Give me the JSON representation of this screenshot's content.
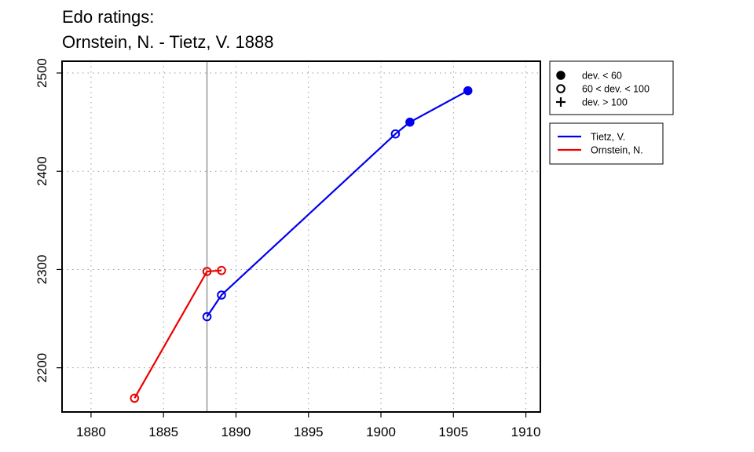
{
  "chart_data": {
    "type": "line",
    "title": [
      "Edo ratings:",
      "Ornstein, N. - Tietz, V. 1888"
    ],
    "xlim": [
      1878,
      1911
    ],
    "ylim": [
      2155,
      2512
    ],
    "x_ticks": [
      1880,
      1885,
      1890,
      1895,
      1900,
      1905,
      1910
    ],
    "y_ticks": [
      2200,
      2300,
      2400,
      2500
    ],
    "grid": true,
    "vline_x": 1888,
    "series": [
      {
        "name": "Tietz, V.",
        "color": "#0000ee",
        "points": [
          {
            "x": 1888,
            "y": 2252,
            "marker": "open"
          },
          {
            "x": 1889,
            "y": 2274,
            "marker": "open"
          },
          {
            "x": 1901,
            "y": 2438,
            "marker": "open"
          },
          {
            "x": 1902,
            "y": 2450,
            "marker": "filled"
          },
          {
            "x": 1906,
            "y": 2482,
            "marker": "filled"
          }
        ]
      },
      {
        "name": "Ornstein, N.",
        "color": "#ee0000",
        "points": [
          {
            "x": 1883,
            "y": 2169,
            "marker": "open"
          },
          {
            "x": 1888,
            "y": 2298,
            "marker": "open"
          },
          {
            "x": 1889,
            "y": 2299,
            "marker": "open"
          }
        ]
      }
    ],
    "marker_legend": [
      {
        "marker": "filled",
        "label": "dev. < 60"
      },
      {
        "marker": "open",
        "label": "60 < dev. < 100"
      },
      {
        "marker": "plus",
        "label": "dev. > 100"
      }
    ],
    "legend_placement": "right"
  }
}
